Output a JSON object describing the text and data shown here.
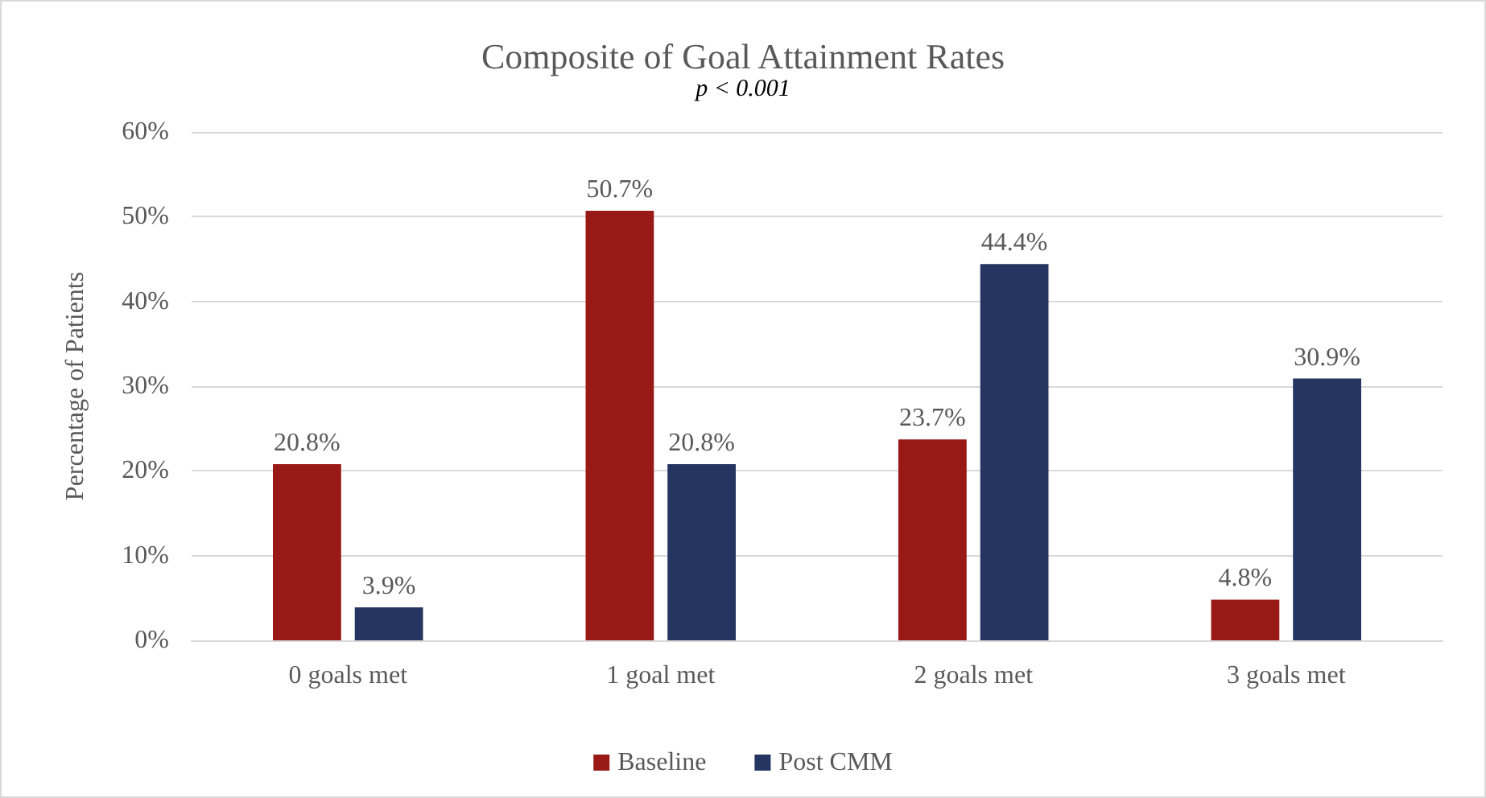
{
  "chart_data": {
    "type": "bar",
    "title": "Composite of Goal Attainment Rates",
    "subtitle": "p < 0.001",
    "ylabel": "Percentage of Patients",
    "categories": [
      "0 goals met",
      "1 goal met",
      "2 goals met",
      "3 goals met"
    ],
    "series": [
      {
        "name": "Baseline",
        "color": "#981915",
        "values": [
          20.8,
          50.7,
          23.7,
          4.8
        ],
        "value_labels": [
          "20.8%",
          "50.7%",
          "23.7%",
          "4.8%"
        ]
      },
      {
        "name": "Post CMM",
        "color": "#253461",
        "values": [
          3.9,
          20.8,
          44.4,
          30.9
        ],
        "value_labels": [
          "3.9%",
          "20.8%",
          "44.4%",
          "30.9%"
        ]
      }
    ],
    "ylim": [
      0,
      60
    ],
    "yticks": [
      {
        "value": 0,
        "label": "0%"
      },
      {
        "value": 10,
        "label": "10%"
      },
      {
        "value": 20,
        "label": "20%"
      },
      {
        "value": 30,
        "label": "30%"
      },
      {
        "value": 40,
        "label": "40%"
      },
      {
        "value": 50,
        "label": "50%"
      },
      {
        "value": 60,
        "label": "60%"
      }
    ],
    "grid": "y",
    "legend": "bottom"
  }
}
